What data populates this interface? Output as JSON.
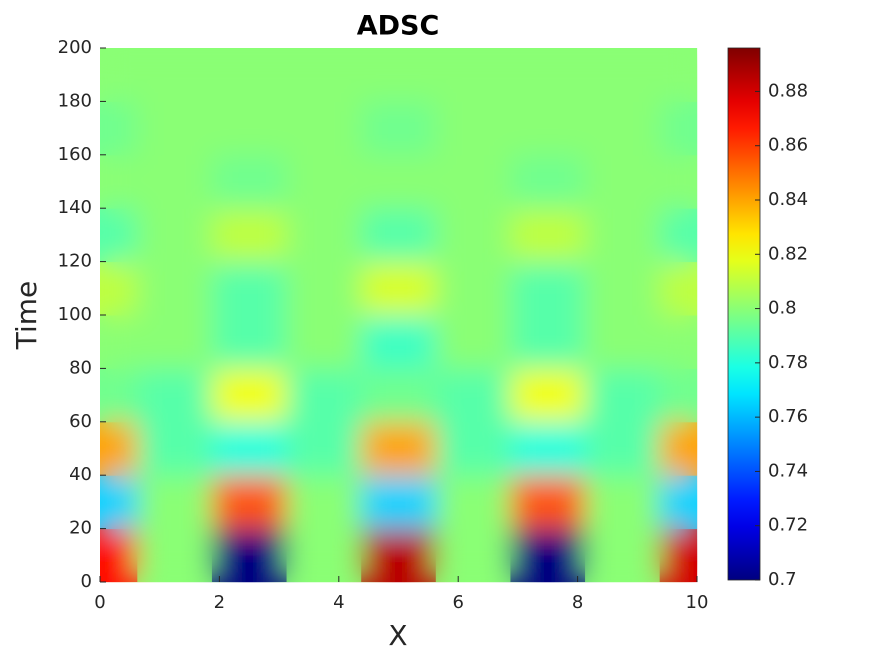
{
  "chart_data": {
    "type": "heatmap",
    "title": "ADSC",
    "xlabel": "X",
    "ylabel": "Time",
    "x": [
      0,
      1.25,
      2.5,
      3.75,
      5,
      6.25,
      7.5,
      8.75,
      10
    ],
    "y": [
      10,
      30,
      50,
      70,
      90,
      110,
      130,
      150,
      170,
      190
    ],
    "z": [
      [
        0.87,
        0.8,
        0.7,
        0.8,
        0.885,
        0.8,
        0.7,
        0.8,
        0.88
      ],
      [
        0.765,
        0.8,
        0.855,
        0.8,
        0.765,
        0.8,
        0.855,
        0.8,
        0.765
      ],
      [
        0.84,
        0.79,
        0.78,
        0.79,
        0.84,
        0.79,
        0.78,
        0.79,
        0.84
      ],
      [
        0.795,
        0.79,
        0.82,
        0.79,
        0.795,
        0.79,
        0.82,
        0.79,
        0.795
      ],
      [
        0.8,
        0.8,
        0.79,
        0.8,
        0.785,
        0.8,
        0.79,
        0.8,
        0.8
      ],
      [
        0.81,
        0.8,
        0.79,
        0.8,
        0.815,
        0.8,
        0.79,
        0.8,
        0.81
      ],
      [
        0.79,
        0.8,
        0.81,
        0.8,
        0.79,
        0.8,
        0.81,
        0.8,
        0.79
      ],
      [
        0.8,
        0.8,
        0.795,
        0.8,
        0.8,
        0.8,
        0.795,
        0.8,
        0.8
      ],
      [
        0.795,
        0.8,
        0.8,
        0.8,
        0.795,
        0.8,
        0.8,
        0.8,
        0.795
      ],
      [
        0.8,
        0.8,
        0.8,
        0.8,
        0.8,
        0.8,
        0.8,
        0.8,
        0.8
      ]
    ],
    "colormap": "jet",
    "xlim": [
      0,
      10
    ],
    "xticks": [
      0,
      2,
      4,
      6,
      8,
      10
    ],
    "ylim": [
      0,
      200
    ],
    "yticks": [
      0,
      20,
      40,
      60,
      80,
      100,
      120,
      140,
      160,
      180,
      200
    ],
    "clim": [
      0.7,
      0.896
    ],
    "cticks": [
      0.7,
      0.72,
      0.74,
      0.76,
      0.78,
      0.8,
      0.82,
      0.84,
      0.86,
      0.88
    ]
  }
}
